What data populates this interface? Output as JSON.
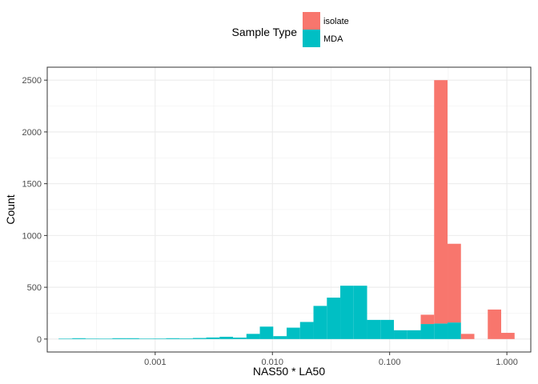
{
  "chart_data": {
    "type": "bar",
    "subtype": "stacked-histogram",
    "xlabel": "NAS50 * LA50",
    "ylabel": "Count",
    "x_scale": "log10",
    "xlim": [
      0.00012,
      1.6
    ],
    "ylim": [
      -125,
      2625
    ],
    "x_ticks": [
      {
        "value": 0.001,
        "label": "0.001"
      },
      {
        "value": 0.01,
        "label": "0.010"
      },
      {
        "value": 0.1,
        "label": "0.100"
      },
      {
        "value": 1.0,
        "label": "1.000"
      }
    ],
    "y_ticks": [
      {
        "value": 0,
        "label": "0"
      },
      {
        "value": 500,
        "label": "500"
      },
      {
        "value": 1000,
        "label": "1000"
      },
      {
        "value": 1500,
        "label": "1500"
      },
      {
        "value": 2000,
        "label": "2000"
      },
      {
        "value": 2500,
        "label": "2500"
      }
    ],
    "grid": true,
    "legend": {
      "title": "Sample Type",
      "position": "top",
      "entries": [
        {
          "name": "isolate",
          "color": "#F8766D"
        },
        {
          "name": "MDA",
          "color": "#00BFC4"
        }
      ]
    },
    "bins": [
      {
        "x0": 0.00015,
        "x1": 0.000196,
        "MDA": 3,
        "isolate": 0
      },
      {
        "x0": 0.000196,
        "x1": 0.000255,
        "MDA": 8,
        "isolate": 0
      },
      {
        "x0": 0.000255,
        "x1": 0.000331,
        "MDA": 4,
        "isolate": 0
      },
      {
        "x0": 0.000331,
        "x1": 0.000431,
        "MDA": 3,
        "isolate": 0
      },
      {
        "x0": 0.000431,
        "x1": 0.000561,
        "MDA": 8,
        "isolate": 0
      },
      {
        "x0": 0.000561,
        "x1": 0.00073,
        "MDA": 8,
        "isolate": 0
      },
      {
        "x0": 0.00073,
        "x1": 0.00095,
        "MDA": 4,
        "isolate": 0
      },
      {
        "x0": 0.00095,
        "x1": 0.001236,
        "MDA": 5,
        "isolate": 0
      },
      {
        "x0": 0.001236,
        "x1": 0.001609,
        "MDA": 8,
        "isolate": 0
      },
      {
        "x0": 0.001609,
        "x1": 0.002094,
        "MDA": 6,
        "isolate": 0
      },
      {
        "x0": 0.002094,
        "x1": 0.002724,
        "MDA": 10,
        "isolate": 0
      },
      {
        "x0": 0.002724,
        "x1": 0.003545,
        "MDA": 15,
        "isolate": 0
      },
      {
        "x0": 0.003545,
        "x1": 0.004613,
        "MDA": 22,
        "isolate": 0
      },
      {
        "x0": 0.004613,
        "x1": 0.006003,
        "MDA": 14,
        "isolate": 0
      },
      {
        "x0": 0.006003,
        "x1": 0.007812,
        "MDA": 50,
        "isolate": 0
      },
      {
        "x0": 0.007812,
        "x1": 0.010165,
        "MDA": 120,
        "isolate": 0
      },
      {
        "x0": 0.010165,
        "x1": 0.013228,
        "MDA": 28,
        "isolate": 0
      },
      {
        "x0": 0.013228,
        "x1": 0.017213,
        "MDA": 110,
        "isolate": 0
      },
      {
        "x0": 0.017213,
        "x1": 0.022399,
        "MDA": 165,
        "isolate": 0
      },
      {
        "x0": 0.022399,
        "x1": 0.029148,
        "MDA": 320,
        "isolate": 0
      },
      {
        "x0": 0.029148,
        "x1": 0.03793,
        "MDA": 400,
        "isolate": 0
      },
      {
        "x0": 0.03793,
        "x1": 0.049358,
        "MDA": 515,
        "isolate": 0
      },
      {
        "x0": 0.049358,
        "x1": 0.06423,
        "MDA": 515,
        "isolate": 0
      },
      {
        "x0": 0.06423,
        "x1": 0.083582,
        "MDA": 185,
        "isolate": 0
      },
      {
        "x0": 0.083582,
        "x1": 0.108764,
        "MDA": 185,
        "isolate": 0
      },
      {
        "x0": 0.108764,
        "x1": 0.141534,
        "MDA": 85,
        "isolate": 0
      },
      {
        "x0": 0.141534,
        "x1": 0.184177,
        "MDA": 85,
        "isolate": 0
      },
      {
        "x0": 0.184177,
        "x1": 0.239668,
        "MDA": 145,
        "isolate": 90
      },
      {
        "x0": 0.239668,
        "x1": 0.311877,
        "MDA": 150,
        "isolate": 2350
      },
      {
        "x0": 0.311877,
        "x1": 0.405843,
        "MDA": 160,
        "isolate": 760
      },
      {
        "x0": 0.405843,
        "x1": 0.52812,
        "MDA": 0,
        "isolate": 50
      },
      {
        "x0": 0.52812,
        "x1": 0.687239,
        "MDA": 0,
        "isolate": 0
      },
      {
        "x0": 0.687239,
        "x1": 0.8943,
        "MDA": 0,
        "isolate": 285
      },
      {
        "x0": 0.8943,
        "x1": 1.163748,
        "MDA": 0,
        "isolate": 60
      }
    ]
  }
}
